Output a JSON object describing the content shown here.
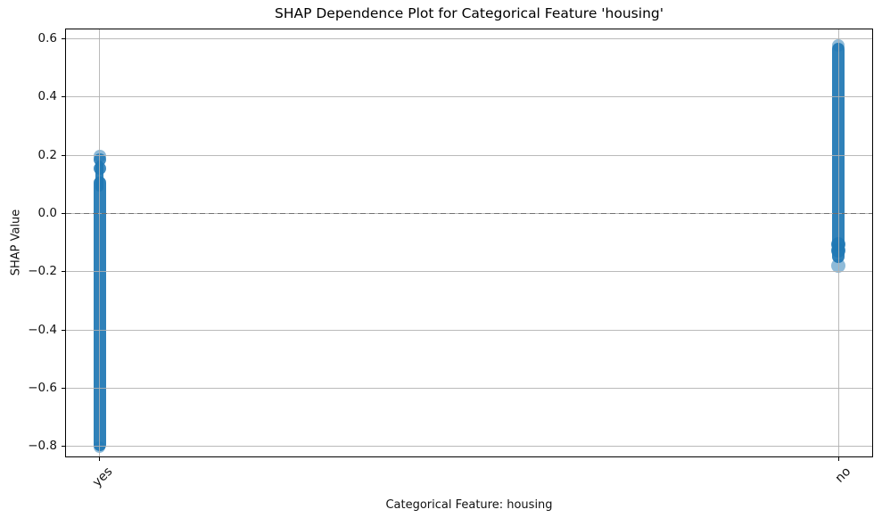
{
  "chart_data": {
    "type": "scatter",
    "title": "SHAP Dependence Plot for Categorical Feature 'housing'",
    "xlabel": "Categorical Feature: housing",
    "ylabel": "SHAP Value",
    "categories": [
      "yes",
      "no"
    ],
    "xlim": [
      -0.047,
      1.047
    ],
    "ylim": [
      -0.837,
      0.635
    ],
    "yticks": [
      {
        "value": 0.6,
        "label": "0.6"
      },
      {
        "value": 0.4,
        "label": "0.4"
      },
      {
        "value": 0.2,
        "label": "0.2"
      },
      {
        "value": 0.0,
        "label": "0.0"
      },
      {
        "value": -0.2,
        "label": "−0.2"
      },
      {
        "value": -0.4,
        "label": "−0.4"
      },
      {
        "value": -0.6,
        "label": "−0.6"
      },
      {
        "value": -0.8,
        "label": "−0.8"
      }
    ],
    "grid": true,
    "grid_color": "#b0b0b0",
    "marker_color": "#1f77b4",
    "axes_color": "#000000",
    "zero_line": {
      "value": 0.0,
      "style": "dashed",
      "color": "#6e6e6e"
    },
    "legend": null,
    "series": [
      {
        "category": "yes",
        "x": 0,
        "value_range": [
          -0.8,
          0.19
        ],
        "dense_strips": [
          {
            "from": 0.106,
            "to": -0.793,
            "width": 14
          },
          {
            "from": 0.168,
            "to": 0.09,
            "width": 9
          }
        ],
        "points": [
          {
            "value": 0.196,
            "style": "light",
            "size": 14
          },
          {
            "value": 0.186,
            "style": "solid",
            "size": 14
          },
          {
            "value": 0.156,
            "style": "solid",
            "size": 14
          },
          {
            "value": -0.802,
            "style": "light",
            "size": 13
          }
        ]
      },
      {
        "category": "no",
        "x": 1,
        "value_range": [
          -0.18,
          0.58
        ],
        "dense_strips": [
          {
            "from": 0.565,
            "to": -0.148,
            "width": 14
          }
        ],
        "points": [
          {
            "value": 0.578,
            "style": "light",
            "size": 14
          },
          {
            "value": -0.105,
            "style": "solid",
            "size": 16
          },
          {
            "value": -0.128,
            "style": "solid",
            "size": 16
          },
          {
            "value": -0.18,
            "style": "light",
            "size": 16
          }
        ]
      }
    ]
  }
}
